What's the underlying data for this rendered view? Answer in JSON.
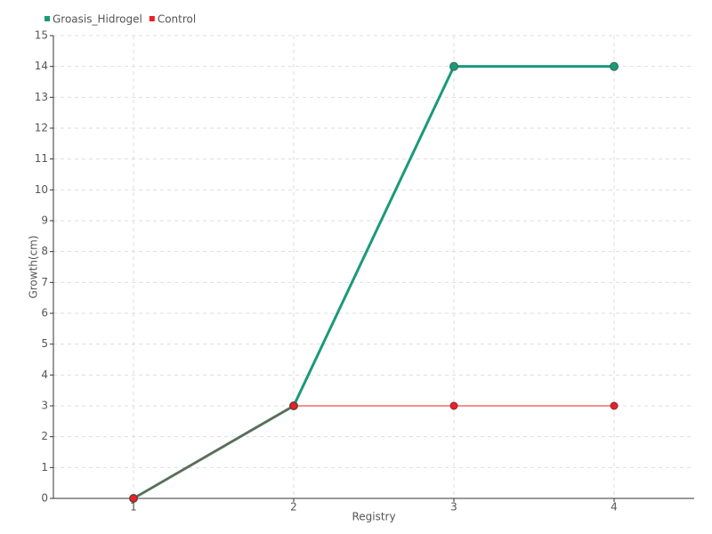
{
  "chart_data": {
    "type": "line",
    "x_label": "Registry",
    "y_label": "Growth(cm)",
    "x": [
      1,
      2,
      3,
      4
    ],
    "xlim": [
      0.5,
      4.5
    ],
    "xticks": [
      1,
      2,
      3,
      4
    ],
    "ylim": [
      0,
      15
    ],
    "yticks": [
      0,
      1,
      2,
      3,
      4,
      5,
      6,
      7,
      8,
      9,
      10,
      11,
      12,
      13,
      14,
      15
    ],
    "grid": true,
    "legend": "top-left",
    "series": [
      {
        "name": "Groasis_Hidrogel",
        "color": "#1a9a7a",
        "values": [
          0,
          3,
          14,
          14
        ]
      },
      {
        "name": "Control",
        "color": "#e8202a",
        "values": [
          0,
          3,
          3,
          3
        ]
      }
    ]
  }
}
